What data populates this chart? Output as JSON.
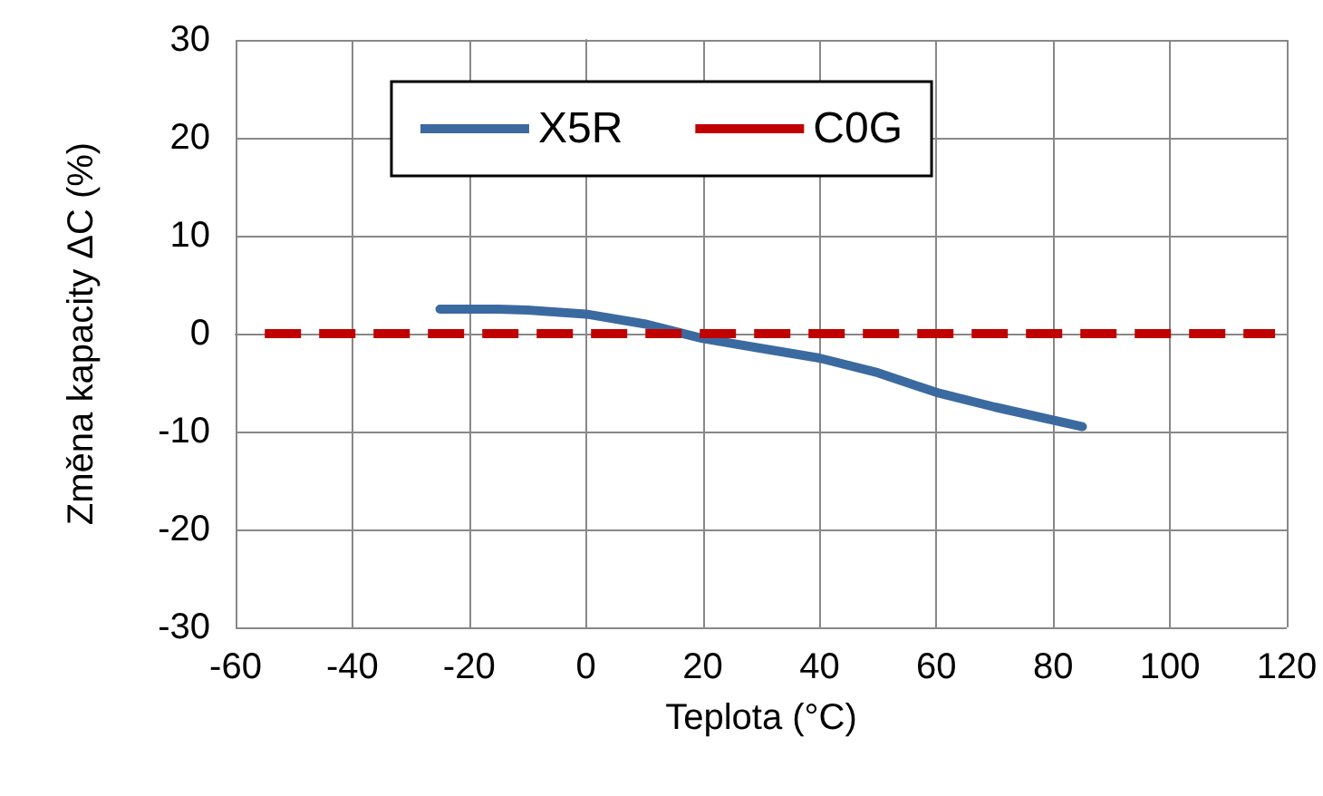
{
  "chart_data": {
    "type": "line",
    "xlabel": "Teplota (°C)",
    "ylabel": "Změna kapacity ΔC (%)",
    "xlim": [
      -60,
      120
    ],
    "xticks": [
      -60,
      -40,
      -20,
      0,
      20,
      40,
      60,
      80,
      100,
      120
    ],
    "ylim": [
      -30,
      30
    ],
    "yticks": [
      -30,
      -20,
      -10,
      0,
      10,
      20,
      30
    ],
    "grid": true,
    "legend": "top",
    "marker": "none",
    "series": [
      {
        "name": "X5R",
        "color": "#3b6aa0",
        "line_style": "solid",
        "x": [
          -25,
          -15,
          -10,
          0,
          10,
          20,
          30,
          40,
          50,
          60,
          70,
          85
        ],
        "values": [
          2.5,
          2.5,
          2.4,
          2,
          1,
          -0.5,
          -1.5,
          -2.5,
          -4,
          -6,
          -7.5,
          -9.5
        ]
      },
      {
        "name": "C0G",
        "color": "#c00000",
        "line_style": "dashed",
        "x": [
          -55,
          118
        ],
        "values": [
          0,
          0
        ]
      }
    ]
  }
}
